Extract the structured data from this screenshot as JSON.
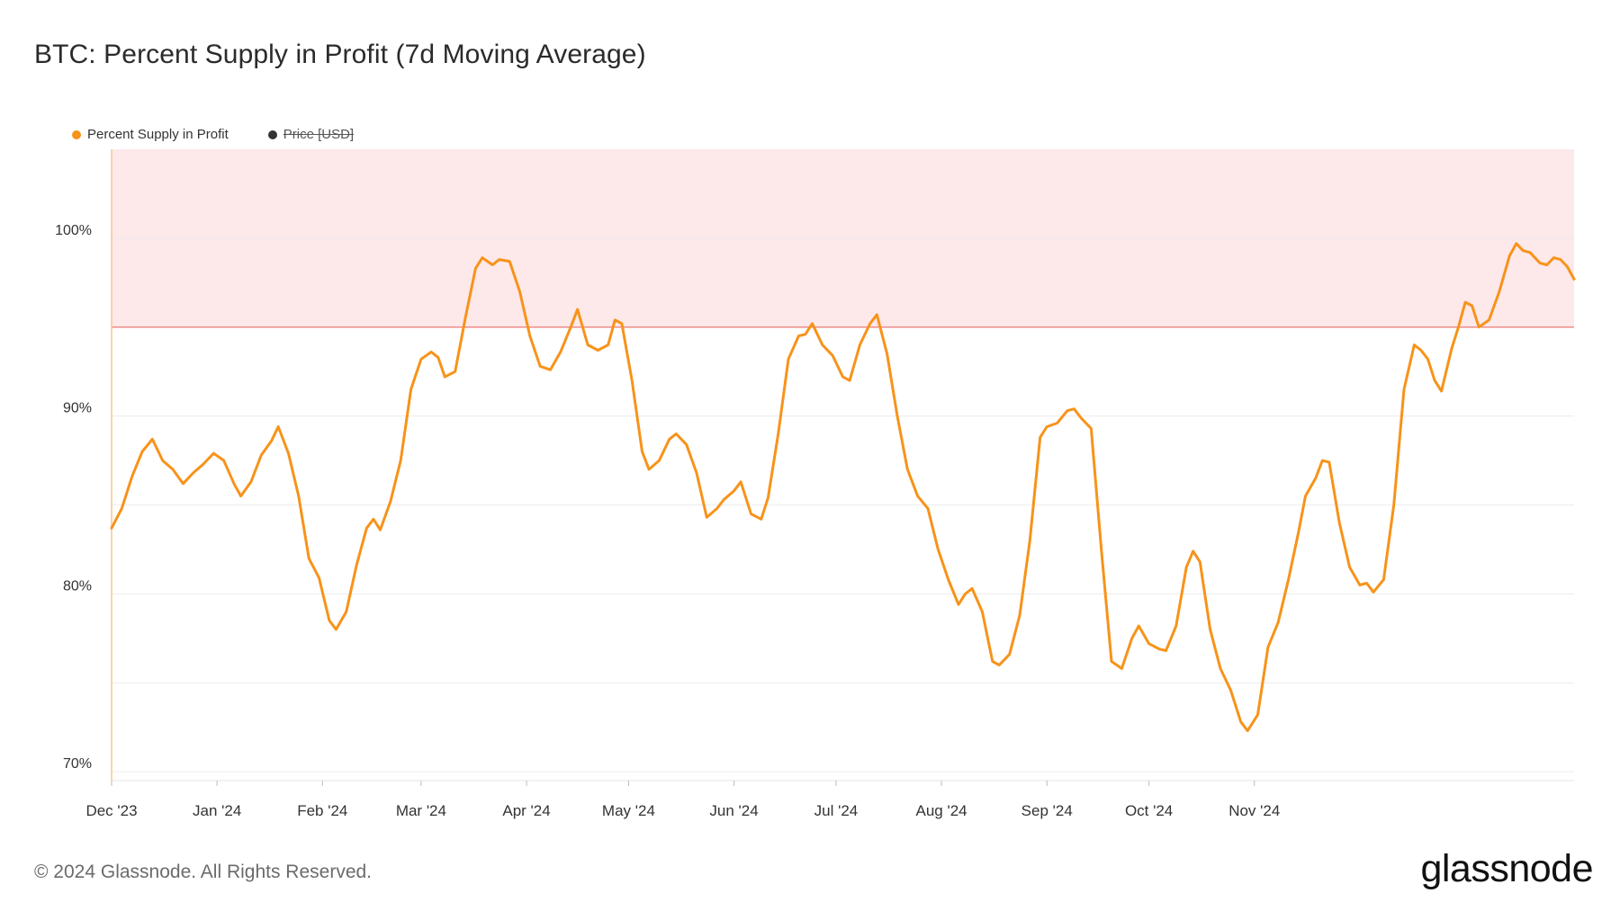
{
  "title": "BTC: Percent Supply in Profit (7d Moving Average)",
  "legend": [
    {
      "label": "Percent Supply in Profit",
      "color": "#f7931a",
      "active": true
    },
    {
      "label": "Price [USD]",
      "color": "#333333",
      "active": false
    }
  ],
  "footer": "© 2024 Glassnode. All Rights Reserved.",
  "brand": "glassnode",
  "chart_data": {
    "type": "line",
    "x_tick_labels": [
      "Dec '23",
      "Jan '24",
      "Feb '24",
      "Mar '24",
      "Apr '24",
      "May '24",
      "Jun '24",
      "Jul '24",
      "Aug '24",
      "Sep '24",
      "Oct '24",
      "Nov '24"
    ],
    "y_tick_labels": [
      "70%",
      "80%",
      "90%",
      "100%"
    ],
    "ylim": [
      69.5,
      105
    ],
    "threshold": {
      "value": 95,
      "color": "#f08a8a",
      "zone_color": "#fde8ea"
    },
    "series": [
      {
        "name": "Percent Supply in Profit",
        "color": "#f7931a",
        "points": [
          [
            0,
            83.7
          ],
          [
            3,
            84.8
          ],
          [
            6,
            86.6
          ],
          [
            9,
            88.0
          ],
          [
            12,
            88.7
          ],
          [
            15,
            87.5
          ],
          [
            18,
            87.0
          ],
          [
            21,
            86.2
          ],
          [
            24,
            86.8
          ],
          [
            27,
            87.3
          ],
          [
            30,
            87.9
          ],
          [
            33,
            87.5
          ],
          [
            36,
            86.2
          ],
          [
            38,
            85.5
          ],
          [
            41,
            86.3
          ],
          [
            44,
            87.8
          ],
          [
            47,
            88.6
          ],
          [
            49,
            89.4
          ],
          [
            52,
            87.9
          ],
          [
            55,
            85.5
          ],
          [
            58,
            82.0
          ],
          [
            61,
            80.9
          ],
          [
            64,
            78.5
          ],
          [
            66,
            78.0
          ],
          [
            69,
            79.0
          ],
          [
            72,
            81.6
          ],
          [
            75,
            83.7
          ],
          [
            77,
            84.2
          ],
          [
            79,
            83.6
          ],
          [
            82,
            85.2
          ],
          [
            85,
            87.5
          ],
          [
            88,
            91.5
          ],
          [
            91,
            93.2
          ],
          [
            94,
            93.6
          ],
          [
            96,
            93.3
          ],
          [
            98,
            92.2
          ],
          [
            101,
            92.5
          ],
          [
            104,
            95.5
          ],
          [
            107,
            98.3
          ],
          [
            109,
            98.9
          ],
          [
            112,
            98.5
          ],
          [
            114,
            98.8
          ],
          [
            117,
            98.7
          ],
          [
            120,
            97.0
          ],
          [
            123,
            94.5
          ],
          [
            126,
            92.8
          ],
          [
            129,
            92.6
          ],
          [
            132,
            93.6
          ],
          [
            135,
            95.0
          ],
          [
            137,
            96.0
          ],
          [
            140,
            94.0
          ],
          [
            143,
            93.7
          ],
          [
            146,
            94.0
          ],
          [
            148,
            95.4
          ],
          [
            150,
            95.2
          ],
          [
            153,
            92.0
          ],
          [
            156,
            88.0
          ],
          [
            158,
            87.0
          ],
          [
            161,
            87.5
          ],
          [
            164,
            88.7
          ],
          [
            166,
            89.0
          ],
          [
            169,
            88.4
          ],
          [
            172,
            86.8
          ],
          [
            175,
            84.3
          ],
          [
            178,
            84.8
          ],
          [
            180,
            85.3
          ],
          [
            183,
            85.8
          ],
          [
            185,
            86.3
          ],
          [
            188,
            84.5
          ],
          [
            191,
            84.2
          ],
          [
            193,
            85.4
          ],
          [
            196,
            89.0
          ],
          [
            199,
            93.2
          ],
          [
            202,
            94.5
          ],
          [
            204,
            94.6
          ],
          [
            206,
            95.2
          ],
          [
            209,
            94.0
          ],
          [
            212,
            93.4
          ],
          [
            215,
            92.2
          ],
          [
            217,
            92.0
          ],
          [
            220,
            94.0
          ],
          [
            223,
            95.2
          ],
          [
            225,
            95.7
          ],
          [
            228,
            93.5
          ],
          [
            231,
            90.0
          ],
          [
            234,
            87.0
          ],
          [
            237,
            85.5
          ],
          [
            240,
            84.8
          ],
          [
            243,
            82.5
          ],
          [
            246,
            80.8
          ],
          [
            249,
            79.4
          ],
          [
            251,
            80.0
          ],
          [
            253,
            80.3
          ],
          [
            256,
            79.0
          ],
          [
            259,
            76.2
          ],
          [
            261,
            76.0
          ],
          [
            264,
            76.6
          ],
          [
            267,
            78.8
          ],
          [
            270,
            83.0
          ],
          [
            273,
            88.8
          ],
          [
            275,
            89.4
          ],
          [
            278,
            89.6
          ],
          [
            281,
            90.3
          ],
          [
            283,
            90.4
          ],
          [
            285,
            89.9
          ],
          [
            288,
            89.3
          ],
          [
            291,
            82.5
          ],
          [
            294,
            76.2
          ],
          [
            297,
            75.8
          ],
          [
            300,
            77.5
          ],
          [
            302,
            78.2
          ],
          [
            305,
            77.2
          ],
          [
            308,
            76.9
          ],
          [
            310,
            76.8
          ],
          [
            313,
            78.2
          ],
          [
            316,
            81.5
          ],
          [
            318,
            82.4
          ],
          [
            320,
            81.8
          ],
          [
            323,
            78.0
          ],
          [
            326,
            75.8
          ],
          [
            329,
            74.6
          ],
          [
            332,
            72.8
          ],
          [
            334,
            72.3
          ],
          [
            337,
            73.2
          ],
          [
            340,
            77.0
          ],
          [
            343,
            78.4
          ],
          [
            346,
            80.8
          ],
          [
            349,
            83.5
          ],
          [
            351,
            85.5
          ],
          [
            354,
            86.5
          ],
          [
            356,
            87.5
          ],
          [
            358,
            87.4
          ],
          [
            361,
            84.0
          ],
          [
            364,
            81.5
          ],
          [
            367,
            80.5
          ],
          [
            369,
            80.6
          ],
          [
            371,
            80.1
          ],
          [
            374,
            80.8
          ],
          [
            377,
            85.0
          ],
          [
            380,
            91.5
          ],
          [
            383,
            94.0
          ],
          [
            385,
            93.7
          ],
          [
            387,
            93.2
          ],
          [
            389,
            92.0
          ],
          [
            391,
            91.4
          ],
          [
            394,
            93.8
          ],
          [
            396,
            95.0
          ],
          [
            398,
            96.4
          ],
          [
            400,
            96.2
          ],
          [
            402,
            95.0
          ],
          [
            405,
            95.4
          ],
          [
            408,
            97.0
          ],
          [
            411,
            99.0
          ],
          [
            413,
            99.7
          ],
          [
            415,
            99.3
          ],
          [
            417,
            99.2
          ],
          [
            420,
            98.6
          ],
          [
            422,
            98.5
          ],
          [
            424,
            98.9
          ],
          [
            426,
            98.8
          ],
          [
            428,
            98.4
          ],
          [
            430,
            97.7
          ]
        ]
      }
    ]
  }
}
